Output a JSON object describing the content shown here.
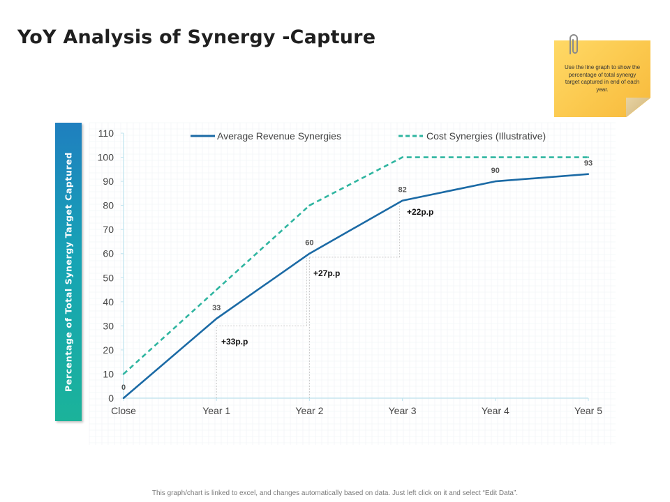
{
  "page": {
    "title": "YoY Analysis of Synergy -Capture",
    "note": "Use the line graph to show the percentage of total synergy target captured in end of each year.",
    "footer": "This graph/chart is linked to excel, and changes automatically based on data. Just left click on it and select “Edit Data”."
  },
  "colors": {
    "revenue": "#1b6aa5",
    "cost": "#2fb5a0",
    "axis": "#bfe3ee",
    "tick_text": "#444444",
    "grid": "#eef1f4"
  },
  "icons": {
    "clip": "paperclip-icon"
  },
  "chart_data": {
    "type": "line",
    "ylabel": "Percentage of Total Synergy Target Captured",
    "categories": [
      "Close",
      "Year 1",
      "Year 2",
      "Year 3",
      "Year 4",
      "Year 5"
    ],
    "ylim": [
      0,
      110
    ],
    "yticks": [
      0,
      10,
      20,
      30,
      40,
      50,
      60,
      70,
      80,
      90,
      100,
      110
    ],
    "series": [
      {
        "name": "Average Revenue Synergies",
        "style": "solid",
        "values": [
          0,
          33,
          60,
          82,
          90,
          93
        ],
        "data_labels": [
          "0",
          "33",
          "60",
          "82",
          "90",
          "93"
        ]
      },
      {
        "name": "Cost Synergies (Illustrative)",
        "style": "dashed",
        "values": [
          10,
          45,
          80,
          100,
          100,
          100
        ]
      }
    ],
    "annotations": [
      {
        "text": "+33p.p",
        "from_category": "Year 1",
        "to_category": "Year 2",
        "level": 30
      },
      {
        "text": "+27p.p",
        "from_category": "Year 2",
        "to_category": "Year 3",
        "level": 58.5
      },
      {
        "text": "+22p.p",
        "from_category": "Year 3",
        "to_category": "Year 3",
        "level": 80
      }
    ],
    "legend_position": "top"
  }
}
